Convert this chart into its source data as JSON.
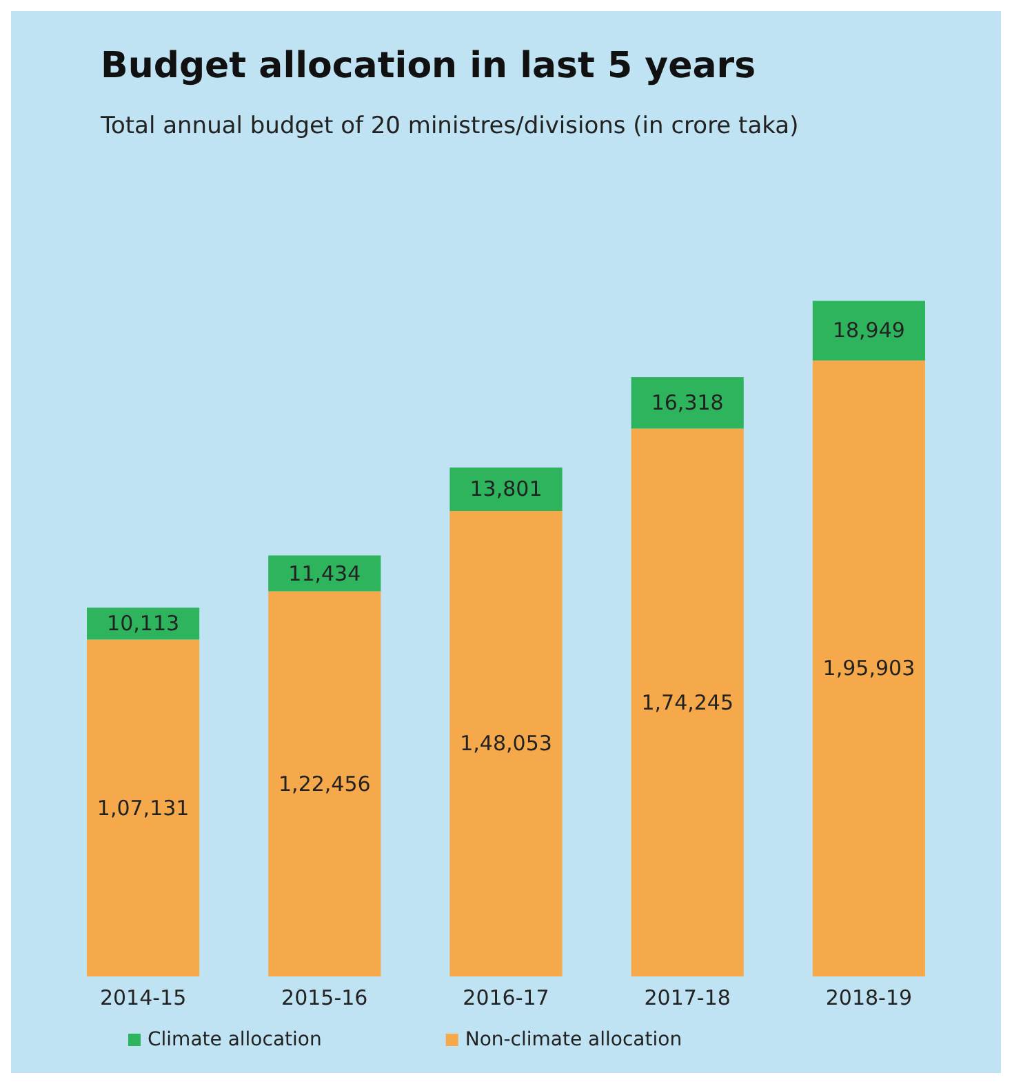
{
  "chart_data": {
    "type": "bar",
    "title": "Budget allocation in last 5 years",
    "subtitle": "Total annual budget of 20 ministres/divisions (in crore taka)",
    "categories": [
      "2014-15",
      "2015-16",
      "2016-17",
      "2017-18",
      "2018-19"
    ],
    "stacked": true,
    "legend": "bottom",
    "series": [
      {
        "name": "Non-climate allocation",
        "color": "#f6a94a",
        "values": [
          107131,
          122456,
          148053,
          174245,
          195903
        ],
        "value_labels": [
          "1,07,131",
          "1,22,456",
          "1,48,053",
          "1,74,245",
          "1,95,903"
        ]
      },
      {
        "name": "Climate allocation",
        "color": "#2fb45e",
        "values": [
          10113,
          11434,
          13801,
          16318,
          18949
        ],
        "value_labels": [
          "10,113",
          "11,434",
          "13,801",
          "16,318",
          "18,949"
        ]
      }
    ]
  }
}
